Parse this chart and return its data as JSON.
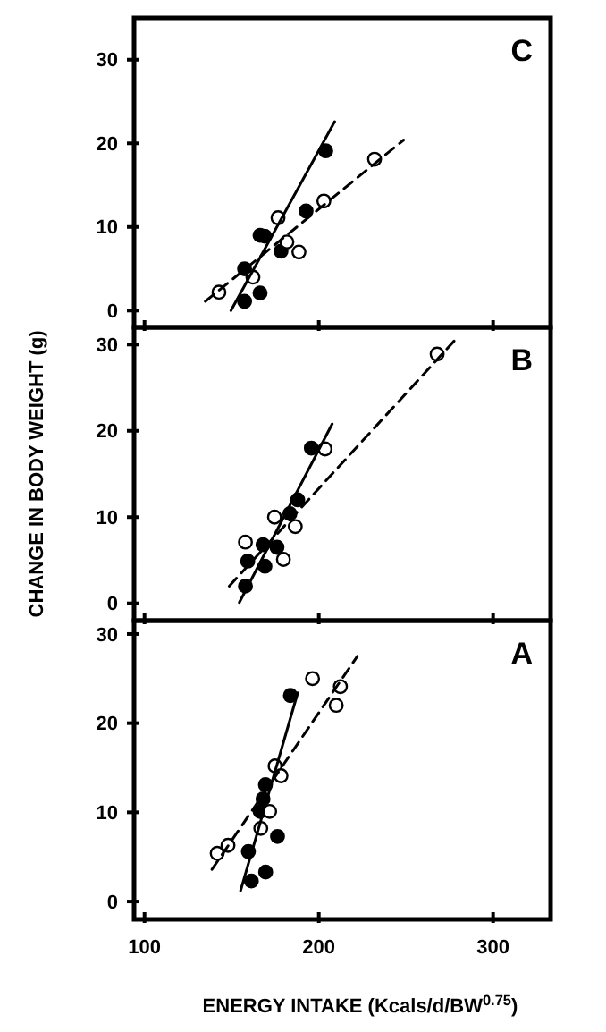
{
  "chart_data": [
    {
      "type": "scatter",
      "annotations": [
        "C"
      ],
      "xlim": [
        94,
        333
      ],
      "xticks": [
        {
          "value": 100,
          "label": null
        },
        {
          "value": 200,
          "label": null
        },
        {
          "value": 300,
          "label": null
        }
      ],
      "ylim": [
        -2,
        35
      ],
      "yticks": [
        0,
        10,
        20,
        30
      ],
      "tick_labels": "y",
      "grid": false,
      "series": [
        {
          "color": "#000000",
          "marker": "circle",
          "x": [
            157.4,
            166.3,
            157.4,
            166.3,
            169,
            178.3,
            192.7,
            204
          ],
          "values": [
            1.1,
            2.1,
            5.0,
            9.0,
            8.9,
            7.1,
            11.9,
            19.1
          ]
        },
        {
          "color": "#ffffff",
          "marker": "circle",
          "x": [
            142.7,
            162.2,
            176.6,
            181.7,
            188.6,
            202.9,
            232
          ],
          "values": [
            2.2,
            4.0,
            11.1,
            8.2,
            7.0,
            13.1,
            18.1
          ]
        },
        {
          "type": "line",
          "color": "#000000",
          "marker": "none",
          "line_style": "solid",
          "x": [
            149.6,
            209.1
          ],
          "values": [
            0,
            22.6
          ]
        },
        {
          "type": "line",
          "color": "#000000",
          "marker": "none",
          "line_style": "dashed",
          "x": [
            134.9,
            248.7
          ],
          "values": [
            1.1,
            20.4
          ]
        }
      ]
    },
    {
      "type": "scatter",
      "annotations": [
        "B"
      ],
      "ylabel": "CHANGE IN BODY WEIGHT (g)",
      "xlim": [
        94,
        333
      ],
      "xticks": [
        {
          "value": 100,
          "label": null
        },
        {
          "value": 200,
          "label": null
        },
        {
          "value": 300,
          "label": null
        }
      ],
      "ylim": [
        -2,
        32
      ],
      "yticks": [
        0,
        10,
        20,
        30
      ],
      "tick_labels": "y",
      "grid": false,
      "series": [
        {
          "color": "#000000",
          "marker": "circle",
          "x": [
            157.9,
            159.2,
            169.1,
            168,
            176,
            183.4,
            187.9,
            195.7
          ],
          "values": [
            2.0,
            4.9,
            4.3,
            6.8,
            6.5,
            10.4,
            12.0,
            18.0
          ]
        },
        {
          "color": "#ffffff",
          "marker": "circle",
          "x": [
            157.9,
            174.6,
            186.5,
            179.7,
            203.6,
            267.9
          ],
          "values": [
            7.1,
            10.0,
            8.9,
            5.1,
            17.9,
            28.9
          ]
        },
        {
          "type": "line",
          "color": "#000000",
          "marker": "none",
          "line_style": "solid",
          "x": [
            154.4,
            207.7
          ],
          "values": [
            0.1,
            20.8
          ]
        },
        {
          "type": "line",
          "color": "#000000",
          "marker": "none",
          "line_style": "dashed",
          "x": [
            148.6,
            278.5
          ],
          "values": [
            2.0,
            30.6
          ]
        }
      ]
    },
    {
      "type": "scatter",
      "annotations": [
        "A"
      ],
      "xlabel": "ENERGY INTAKE (Kcals/d/BW$^{0.75}$)",
      "xlim": [
        94,
        333
      ],
      "xticks": [
        100,
        200,
        300
      ],
      "ylim": [
        -2,
        31.5
      ],
      "yticks": [
        0,
        10,
        20,
        30
      ],
      "grid": false,
      "series": [
        {
          "color": "#000000",
          "marker": "circle",
          "x": [
            161.3,
            169.5,
            159.6,
            176.3,
            166.3,
            168,
            169.4,
            183.7
          ],
          "values": [
            2.3,
            3.3,
            5.6,
            7.3,
            10.1,
            11.5,
            13.1,
            23.1
          ]
        },
        {
          "color": "#ffffff",
          "marker": "circle",
          "x": [
            141.7,
            147.9,
            166.7,
            171.8,
            174.9,
            178.3,
            196.4,
            210,
            212.4
          ],
          "values": [
            5.4,
            6.3,
            8.2,
            10.1,
            15.2,
            14.1,
            25.0,
            22.0,
            24.1
          ]
        },
        {
          "type": "line",
          "color": "#000000",
          "marker": "none",
          "line_style": "solid",
          "x": [
            155.1,
            187.9
          ],
          "values": [
            1.2,
            23.4
          ]
        },
        {
          "type": "line",
          "color": "#000000",
          "marker": "none",
          "line_style": "dashed",
          "x": [
            138.7,
            222.1
          ],
          "values": [
            3.6,
            27.5
          ]
        }
      ]
    }
  ]
}
